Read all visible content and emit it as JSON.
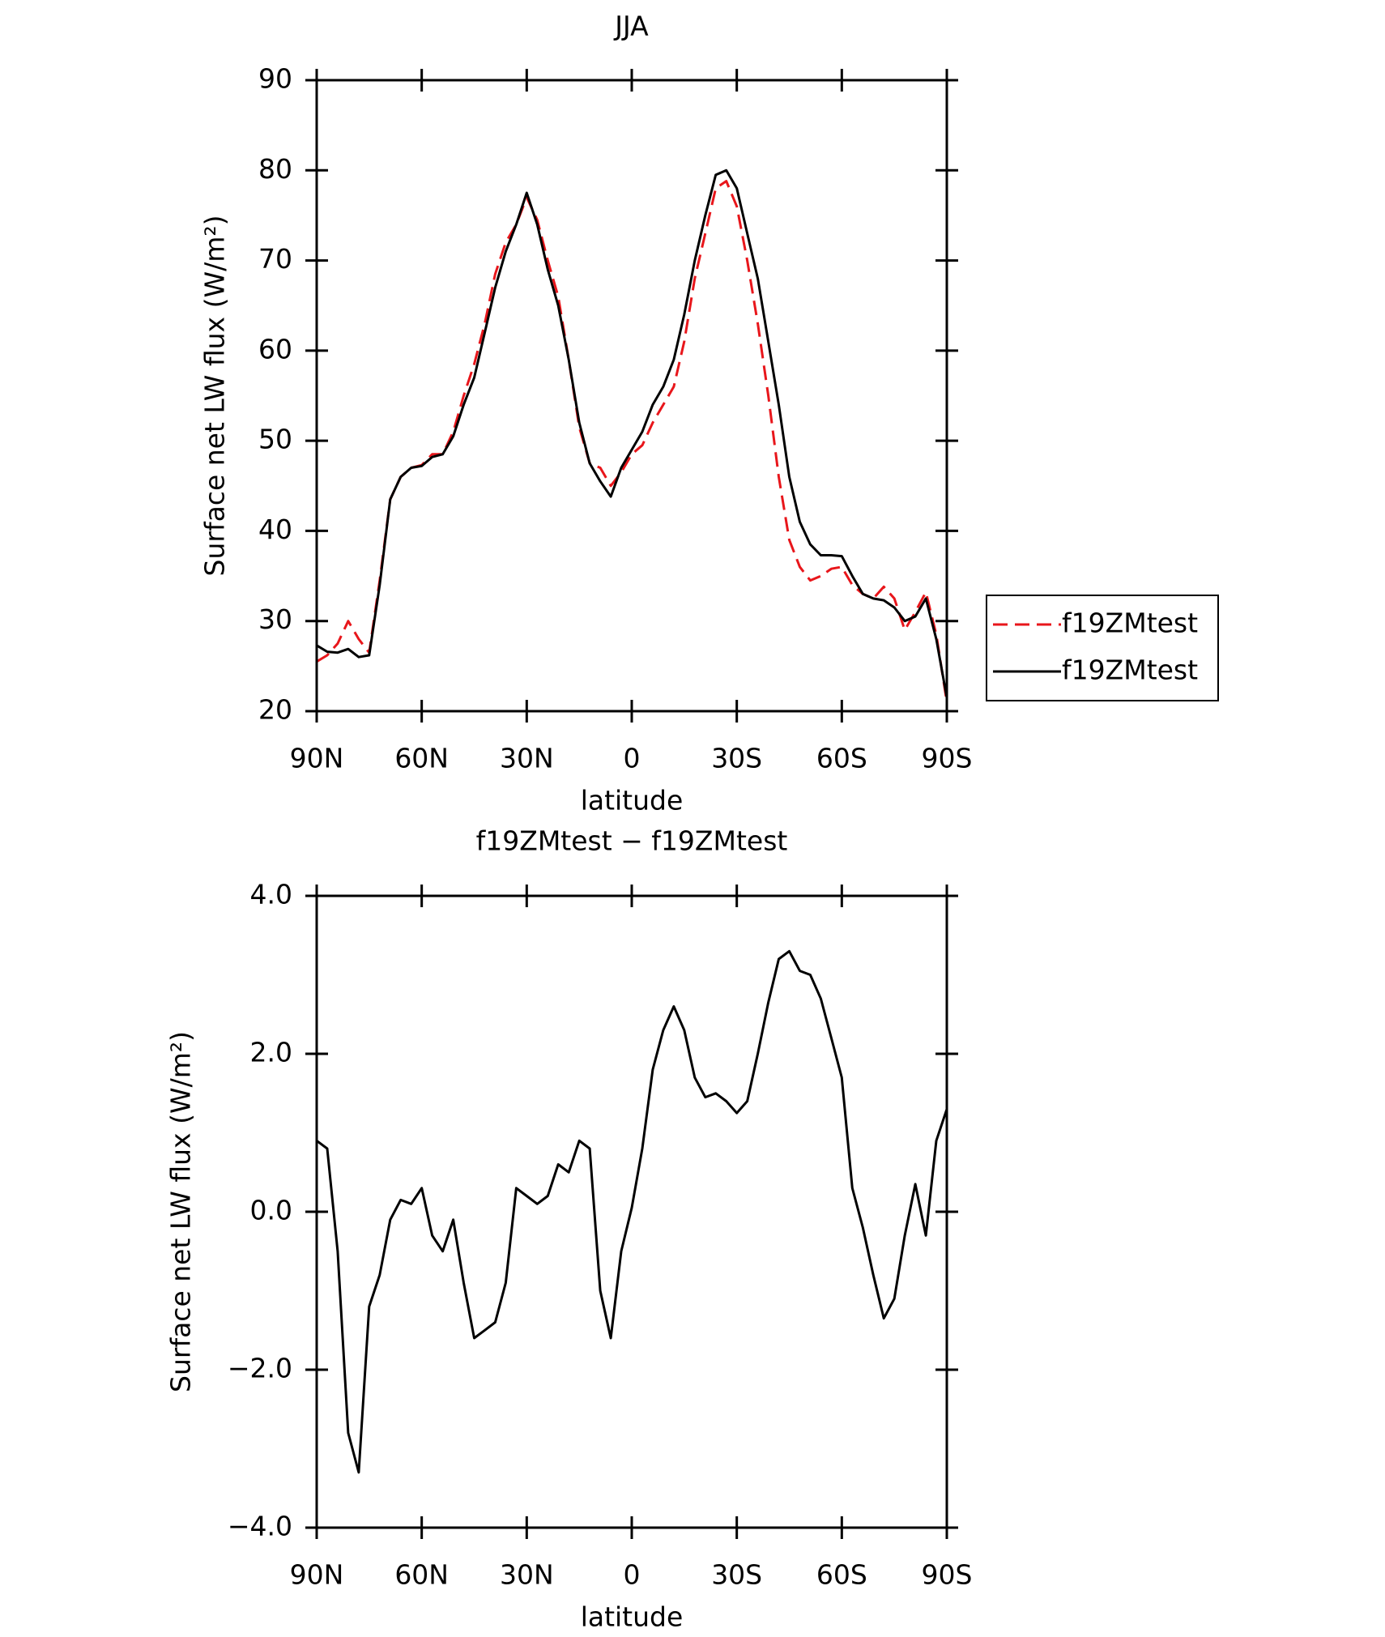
{
  "chart_data": [
    {
      "type": "line",
      "title": "JJA",
      "xlabel": "latitude",
      "ylabel": "Surface net LW flux (W/m²)",
      "x": [
        90,
        87,
        84,
        81,
        78,
        75,
        72,
        69,
        66,
        63,
        60,
        57,
        54,
        51,
        48,
        45,
        42,
        39,
        36,
        33,
        30,
        27,
        24,
        21,
        18,
        15,
        12,
        9,
        6,
        3,
        0,
        -3,
        -6,
        -9,
        -12,
        -15,
        -18,
        -21,
        -24,
        -27,
        -30,
        -33,
        -36,
        -39,
        -42,
        -45,
        -48,
        -51,
        -54,
        -57,
        -60,
        -63,
        -66,
        -69,
        -72,
        -75,
        -78,
        -81,
        -84,
        -87,
        -90
      ],
      "xlim": [
        90,
        -90
      ],
      "xticks": [
        {
          "value": 90,
          "label": "90N"
        },
        {
          "value": 60,
          "label": "60N"
        },
        {
          "value": 30,
          "label": "30N"
        },
        0,
        {
          "value": -30,
          "label": "30S"
        },
        {
          "value": -60,
          "label": "60S"
        },
        {
          "value": -90,
          "label": "90S"
        }
      ],
      "ylim": [
        20,
        90
      ],
      "yticks": [
        20,
        30,
        40,
        50,
        60,
        70,
        80,
        90
      ],
      "legend": "right",
      "series": [
        {
          "name": "f19ZMtest",
          "color": "#e8161b",
          "line_style": "dashed",
          "values": [
            25.5,
            26.2,
            27.5,
            30,
            28,
            26.5,
            34.5,
            43.5,
            46,
            47,
            47.3,
            48.5,
            48.5,
            51,
            55,
            58.5,
            63,
            68.5,
            72,
            74,
            77,
            74.5,
            70,
            66,
            59,
            51.5,
            47.5,
            47,
            45,
            46.5,
            48.5,
            49.5,
            52,
            54,
            56,
            61,
            68,
            73,
            78,
            78.8,
            76,
            70,
            63,
            55,
            46,
            39,
            36,
            34.5,
            35,
            35.8,
            36,
            34,
            33,
            32.5,
            33.8,
            32.5,
            29,
            31,
            33.2,
            28.5,
            21
          ]
        },
        {
          "name": "f19ZMtest",
          "color": "#000000",
          "line_style": "solid",
          "values": [
            27.3,
            26.6,
            26.5,
            26.9,
            26,
            26.2,
            34,
            43.5,
            46,
            47,
            47.2,
            48.2,
            48.5,
            50.5,
            54,
            57,
            62,
            67,
            71,
            74,
            77.5,
            74,
            69,
            65,
            59,
            52,
            47.5,
            45.5,
            43.8,
            47,
            49,
            51,
            54,
            56,
            59,
            64,
            70,
            75,
            79.5,
            80,
            78,
            73,
            68,
            61,
            54,
            46,
            41,
            38.5,
            37.3,
            37.3,
            37.2,
            35,
            33,
            32.5,
            32.3,
            31.5,
            30,
            30.5,
            32.5,
            28,
            21.5
          ]
        }
      ]
    },
    {
      "type": "line",
      "title": "f19ZMtest − f19ZMtest",
      "xlabel": "latitude",
      "ylabel": "Surface net LW flux (W/m²)",
      "x": [
        90,
        87,
        84,
        81,
        78,
        75,
        72,
        69,
        66,
        63,
        60,
        57,
        54,
        51,
        48,
        45,
        42,
        39,
        36,
        33,
        30,
        27,
        24,
        21,
        18,
        15,
        12,
        9,
        6,
        3,
        0,
        -3,
        -6,
        -9,
        -12,
        -15,
        -18,
        -21,
        -24,
        -27,
        -30,
        -33,
        -36,
        -39,
        -42,
        -45,
        -48,
        -51,
        -54,
        -57,
        -60,
        -63,
        -66,
        -69,
        -72,
        -75,
        -78,
        -81,
        -84,
        -87,
        -90
      ],
      "xlim": [
        90,
        -90
      ],
      "xticks": [
        {
          "value": 90,
          "label": "90N"
        },
        {
          "value": 60,
          "label": "60N"
        },
        {
          "value": 30,
          "label": "30N"
        },
        0,
        {
          "value": -30,
          "label": "30S"
        },
        {
          "value": -60,
          "label": "60S"
        },
        {
          "value": -90,
          "label": "90S"
        }
      ],
      "ylim": [
        -4,
        4
      ],
      "yticks": [
        {
          "value": -4,
          "label": "−4.0"
        },
        {
          "value": -2,
          "label": "−2.0"
        },
        {
          "value": 0,
          "label": "0.0"
        },
        {
          "value": 2,
          "label": "2.0"
        },
        {
          "value": 4,
          "label": "4.0"
        }
      ],
      "series": [
        {
          "color": "#000000",
          "line_style": "solid",
          "values": [
            0.9,
            0.8,
            -0.5,
            -2.8,
            -3.3,
            -1.2,
            -0.8,
            -0.1,
            0.15,
            0.1,
            0.3,
            -0.3,
            -0.5,
            -0.1,
            -0.9,
            -1.6,
            -1.5,
            -1.4,
            -0.9,
            0.3,
            0.2,
            0.1,
            0.2,
            0.6,
            0.5,
            0.9,
            0.8,
            -1.0,
            -1.6,
            -0.5,
            0.05,
            0.8,
            1.8,
            2.3,
            2.6,
            2.3,
            1.7,
            1.45,
            1.5,
            1.4,
            1.25,
            1.4,
            2.0,
            2.65,
            3.2,
            3.3,
            3.05,
            3.0,
            2.7,
            2.2,
            1.7,
            0.3,
            -0.2,
            -0.8,
            -1.35,
            -1.1,
            -0.3,
            0.35,
            -0.3,
            0.9,
            1.3
          ]
        }
      ]
    }
  ]
}
